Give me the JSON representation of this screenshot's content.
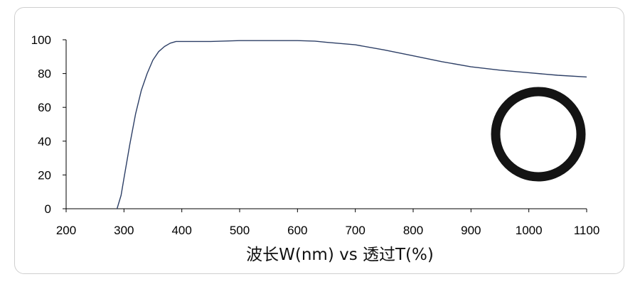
{
  "chart_data": {
    "type": "line",
    "xlabel": "波长W(nm) vs 透过T(%)",
    "ylabel": "",
    "xlim": [
      200,
      1100
    ],
    "ylim": [
      0,
      100
    ],
    "x_ticks": [
      "200",
      "300",
      "400",
      "500",
      "600",
      "700",
      "800",
      "900",
      "1000",
      "1100"
    ],
    "y_ticks": [
      "0",
      "20",
      "40",
      "60",
      "80",
      "100"
    ],
    "grid": false,
    "legend": "none",
    "series": [
      {
        "color": "#2d3f66",
        "x": [
          288,
          295,
          300,
          310,
          320,
          330,
          340,
          350,
          360,
          370,
          380,
          390,
          400,
          420,
          450,
          500,
          550,
          600,
          630,
          650,
          700,
          750,
          800,
          850,
          900,
          950,
          1000,
          1050,
          1100
        ],
        "y": [
          0,
          8,
          18,
          38,
          56,
          70,
          80,
          88,
          93,
          96,
          98,
          99,
          99,
          99,
          99,
          99.5,
          99.5,
          99.5,
          99.2,
          98.5,
          97,
          94,
          90.5,
          87,
          84,
          82,
          80.5,
          79,
          78
        ]
      }
    ]
  },
  "inset": {
    "icon": "ring-icon",
    "color": "#141414"
  }
}
